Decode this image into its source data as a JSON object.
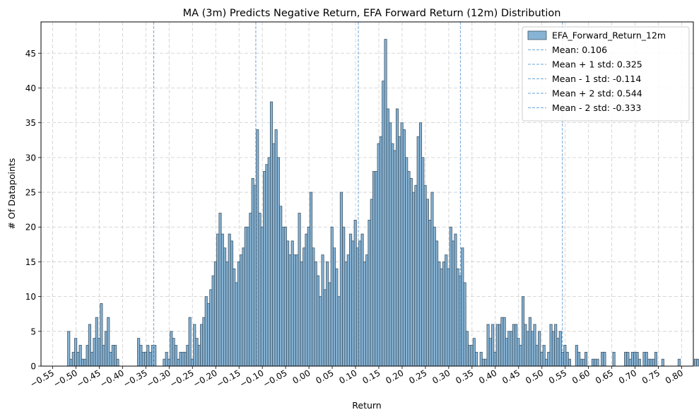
{
  "chart_data": {
    "type": "bar",
    "title": "MA (3m) Predicts Negative Return, EFA Forward Return (12m) Distribution",
    "xlabel": "Return",
    "ylabel": "# Of Datapoints",
    "xlim": [
      -0.575,
      0.825
    ],
    "ylim": [
      0,
      49.5
    ],
    "grid": true,
    "legend_position": "top-right",
    "bin_width": 0.005,
    "colors": {
      "bar_fill": "#87b3d4",
      "bar_edge": "#3f5566",
      "vline": "#6fa6d6",
      "grid": "#cccccc"
    },
    "x_ticks": [
      -0.55,
      -0.5,
      -0.45,
      -0.4,
      -0.35,
      -0.3,
      -0.25,
      -0.2,
      -0.15,
      -0.1,
      -0.05,
      0.0,
      0.05,
      0.1,
      0.15,
      0.2,
      0.25,
      0.3,
      0.35,
      0.4,
      0.45,
      0.5,
      0.55,
      0.6,
      0.65,
      0.7,
      0.75,
      0.8
    ],
    "x_tick_labels": [
      "−0.55",
      "−0.50",
      "−0.45",
      "−0.40",
      "−0.35",
      "−0.30",
      "−0.25",
      "−0.20",
      "−0.15",
      "−0.10",
      "−0.05",
      "0.00",
      "0.05",
      "0.10",
      "0.15",
      "0.20",
      "0.25",
      "0.30",
      "0.35",
      "0.40",
      "0.45",
      "0.50",
      "0.55",
      "0.60",
      "0.65",
      "0.70",
      "0.75",
      "0.80"
    ],
    "y_ticks": [
      0,
      5,
      10,
      15,
      20,
      25,
      30,
      35,
      40,
      45
    ],
    "y_tick_labels": [
      "0",
      "5",
      "10",
      "15",
      "20",
      "25",
      "30",
      "35",
      "40",
      "45"
    ],
    "series": [
      {
        "name": "EFA_Forward_Return_12m",
        "bin_start": -0.518,
        "values": [
          5,
          1,
          2,
          4,
          2,
          3,
          1,
          1,
          3,
          6,
          2,
          4,
          7,
          4,
          9,
          3,
          5,
          7,
          2,
          3,
          3,
          1,
          0,
          0,
          0,
          0,
          0,
          0,
          0,
          0,
          4,
          3,
          2,
          2,
          3,
          2,
          3,
          3,
          0,
          0,
          0,
          1,
          2,
          1,
          5,
          4,
          3,
          1,
          2,
          2,
          2,
          3,
          7,
          1,
          6,
          4,
          3,
          6,
          7,
          10,
          9,
          11,
          13,
          15,
          19,
          22,
          19,
          17,
          15,
          19,
          18,
          14,
          12,
          15,
          16,
          17,
          20,
          20,
          22,
          27,
          26,
          34,
          22,
          20,
          28,
          29,
          30,
          38,
          32,
          34,
          30,
          23,
          20,
          20,
          18,
          16,
          18,
          16,
          16,
          22,
          15,
          17,
          19,
          20,
          25,
          17,
          15,
          13,
          10,
          16,
          11,
          15,
          12,
          20,
          17,
          14,
          10,
          25,
          20,
          15,
          16,
          19,
          18,
          21,
          17,
          18,
          19,
          15,
          16,
          21,
          24,
          28,
          28,
          32,
          33,
          41,
          47,
          37,
          35,
          32,
          31,
          37,
          33,
          35,
          34,
          30,
          28,
          27,
          25,
          26,
          33,
          35,
          30,
          26,
          24,
          21,
          25,
          20,
          18,
          15,
          14,
          15,
          16,
          14,
          20,
          18,
          19,
          14,
          13,
          17,
          12,
          5,
          3,
          3,
          4,
          2,
          0,
          2,
          1,
          1,
          6,
          4,
          6,
          2,
          6,
          6,
          7,
          7,
          4,
          5,
          5,
          6,
          6,
          4,
          3,
          10,
          6,
          5,
          7,
          5,
          6,
          3,
          5,
          2,
          3,
          1,
          2,
          6,
          5,
          6,
          4,
          5,
          2,
          3,
          2,
          1,
          0,
          0,
          3,
          2,
          1,
          1,
          2,
          0,
          0,
          1,
          1,
          1,
          0,
          2,
          2,
          0,
          0,
          0,
          2,
          0,
          0,
          0,
          0,
          2,
          2,
          1,
          2,
          2,
          2,
          1,
          0,
          2,
          2,
          1,
          1,
          1,
          2,
          0,
          0,
          1,
          0,
          0,
          0,
          0,
          0,
          0,
          1,
          0,
          0,
          0,
          0,
          0,
          0,
          1,
          1,
          0,
          0,
          0,
          0,
          0,
          0,
          1
        ]
      }
    ],
    "reference_lines": [
      {
        "label": "Mean: 0.106",
        "x": 0.106
      },
      {
        "label": "Mean + 1 std: 0.325",
        "x": 0.325
      },
      {
        "label": "Mean - 1 std: -0.114",
        "x": -0.114
      },
      {
        "label": "Mean + 2 std: 0.544",
        "x": 0.544
      },
      {
        "label": "Mean - 2 std: -0.333",
        "x": -0.333
      }
    ]
  }
}
